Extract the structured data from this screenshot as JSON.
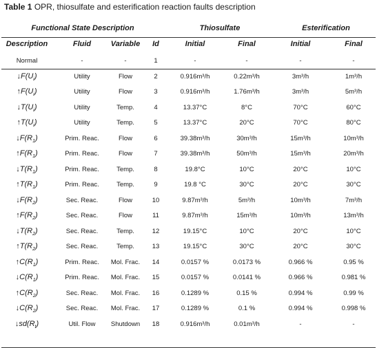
{
  "caption": {
    "label": "Table 1",
    "text": "OPR, thiosulfate and esterification reaction faults description"
  },
  "header": {
    "group_functional": "Functional State Description",
    "group_thiosulfate": "Thiosulfate",
    "group_esterification": "Esterification",
    "col_description": "Description",
    "col_fluid": "Fluid",
    "col_variable": "Variable",
    "col_id": "Id",
    "col_initial_1": "Initial",
    "col_final_1": "Final",
    "col_initial_2": "Initial",
    "col_final_2": "Final"
  },
  "rows": [
    {
      "arrow": "",
      "fn": "Normal",
      "sub": "",
      "fluid": "-",
      "variable": "-",
      "id": "1",
      "t_init": "-",
      "t_final": "-",
      "e_init": "-",
      "e_final": "-"
    },
    {
      "arrow": "↓",
      "fn": "F(U",
      "sub": "i",
      "fluid": "Utility",
      "variable": "Flow",
      "id": "2",
      "t_init": "0.916m³/h",
      "t_final": "0.22m³/h",
      "e_init": "3m³/h",
      "e_final": "1m³/h"
    },
    {
      "arrow": "↑",
      "fn": "F(U",
      "sub": "i",
      "fluid": "Utility",
      "variable": "Flow",
      "id": "3",
      "t_init": "0.916m³/h",
      "t_final": "1.76m³/h",
      "e_init": "3m³/h",
      "e_final": "5m³/h"
    },
    {
      "arrow": "↓",
      "fn": "T(U",
      "sub": "i",
      "fluid": "Utility",
      "variable": "Temp.",
      "id": "4",
      "t_init": "13.37°C",
      "t_final": "8°C",
      "e_init": "70°C",
      "e_final": "60°C"
    },
    {
      "arrow": "↑",
      "fn": "T(U",
      "sub": "i",
      "fluid": "Utility",
      "variable": "Temp.",
      "id": "5",
      "t_init": "13.37°C",
      "t_final": "20°C",
      "e_init": "70°C",
      "e_final": "80°C"
    },
    {
      "arrow": "↓",
      "fn": "F(R",
      "sub": "1",
      "fluid": "Prim. Reac.",
      "variable": "Flow",
      "id": "6",
      "t_init": "39.38m³/h",
      "t_final": "30m³/h",
      "e_init": "15m³/h",
      "e_final": "10m³/h"
    },
    {
      "arrow": "↑",
      "fn": "F(R",
      "sub": "1",
      "fluid": "Prim. Reac.",
      "variable": "Flow",
      "id": "7",
      "t_init": "39.38m³/h",
      "t_final": "50m³/h",
      "e_init": "15m³/h",
      "e_final": "20m³/h"
    },
    {
      "arrow": "↓",
      "fn": "T(R",
      "sub": "1",
      "fluid": "Prim. Reac.",
      "variable": "Temp.",
      "id": "8",
      "t_init": "19.8°C",
      "t_final": "10°C",
      "e_init": "20°C",
      "e_final": "10°C"
    },
    {
      "arrow": "↑",
      "fn": "T(R",
      "sub": "1",
      "fluid": "Prim. Reac.",
      "variable": "Temp.",
      "id": "9",
      "t_init": "19.8 °C",
      "t_final": "30°C",
      "e_init": "20°C",
      "e_final": "30°C"
    },
    {
      "arrow": "↓",
      "fn": "F(R",
      "sub": "2",
      "fluid": "Sec. Reac.",
      "variable": "Flow",
      "id": "10",
      "t_init": "9.87m³/h",
      "t_final": "5m³/h",
      "e_init": "10m³/h",
      "e_final": "7m³/h"
    },
    {
      "arrow": "↑",
      "fn": "F(R",
      "sub": "2",
      "fluid": "Sec. Reac.",
      "variable": "Flow",
      "id": "11",
      "t_init": "9.87m³/h",
      "t_final": "15m³/h",
      "e_init": "10m³/h",
      "e_final": "13m³/h"
    },
    {
      "arrow": "↓",
      "fn": "T(R",
      "sub": "2",
      "fluid": "Sec. Reac.",
      "variable": "Temp.",
      "id": "12",
      "t_init": "19.15°C",
      "t_final": "10°C",
      "e_init": "20°C",
      "e_final": "10°C"
    },
    {
      "arrow": "↑",
      "fn": "T(R",
      "sub": "2",
      "fluid": "Sec. Reac.",
      "variable": "Temp.",
      "id": "13",
      "t_init": "19.15°C",
      "t_final": "30°C",
      "e_init": "20°C",
      "e_final": "30°C"
    },
    {
      "arrow": "↑",
      "fn": "C(R",
      "sub": "1",
      "fluid": "Prim. Reac.",
      "variable": "Mol. Frac.",
      "id": "14",
      "t_init": "0.0157 %",
      "t_final": "0.0173 %",
      "e_init": "0.966 %",
      "e_final": "0.95 %"
    },
    {
      "arrow": "↓",
      "fn": "C(R",
      "sub": "1",
      "fluid": "Prim. Reac.",
      "variable": "Mol. Frac.",
      "id": "15",
      "t_init": "0.0157 %",
      "t_final": "0.0141 %",
      "e_init": "0.966 %",
      "e_final": "0.981 %"
    },
    {
      "arrow": "↑",
      "fn": "C(R",
      "sub": "2",
      "fluid": "Sec. Reac.",
      "variable": "Mol. Frac.",
      "id": "16",
      "t_init": "0.1289 %",
      "t_final": "0.15 %",
      "e_init": "0.994 %",
      "e_final": "0.99 %"
    },
    {
      "arrow": "↓",
      "fn": "C(R",
      "sub": "2",
      "fluid": "Sec. Reac.",
      "variable": "Mol. Frac.",
      "id": "17",
      "t_init": "0.1289 %",
      "t_final": "0.1 %",
      "e_init": "0.994 %",
      "e_final": "0.998 %"
    },
    {
      "arrow": "↓",
      "fn": "sd(R",
      "sub": "t",
      "fluid": "Util. Flow",
      "variable": "Shutdown",
      "id": "18",
      "t_init": "0.916m³/h",
      "t_final": "0.01m³/h",
      "e_init": "-",
      "e_final": "-"
    }
  ]
}
